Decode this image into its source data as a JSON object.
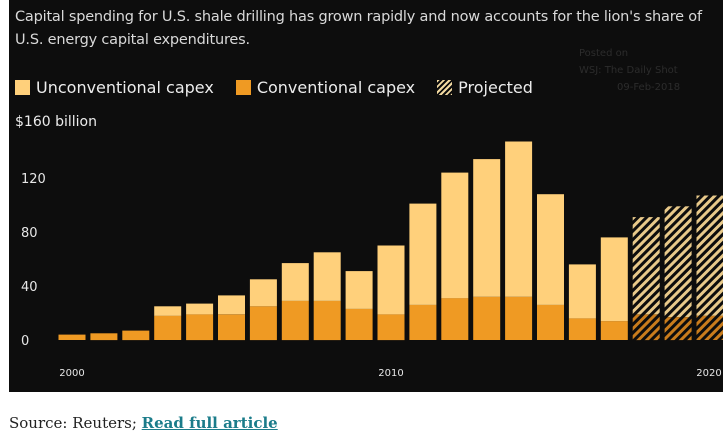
{
  "chart_data": {
    "type": "bar",
    "stacked": true,
    "title": "",
    "subtitle": "Capital spending for U.S. shale drilling has grown rapidly and now accounts for the lion's share of U.S. energy capital expenditures.",
    "unit_label": "$160 billion",
    "legend": {
      "placement": "top-left",
      "entries": [
        "Unconventional capex",
        "Conventional capex",
        "Projected"
      ]
    },
    "x": [
      2000,
      2001,
      2002,
      2003,
      2004,
      2005,
      2006,
      2007,
      2008,
      2009,
      2010,
      2011,
      2012,
      2013,
      2014,
      2015,
      2016,
      2017,
      2018,
      2019,
      2020
    ],
    "x_tick_labels": [
      "2000",
      "2010",
      "2020"
    ],
    "x_tick_values": [
      2000,
      2010,
      2020
    ],
    "y_ticks": [
      0,
      40,
      80,
      120
    ],
    "ylim": [
      -10,
      160
    ],
    "projected_from": 2018,
    "series": [
      {
        "name": "Conventional capex",
        "color": "#ef9a23",
        "values": [
          4,
          5,
          7,
          18,
          19,
          19,
          25,
          29,
          29,
          23,
          19,
          26,
          31,
          32,
          32,
          26,
          16,
          14,
          19,
          17,
          18
        ]
      },
      {
        "name": "Unconventional capex",
        "color": "#ffd07b",
        "values": [
          0,
          0,
          0,
          7,
          8,
          14,
          20,
          28,
          36,
          28,
          51,
          75,
          93,
          102,
          115,
          82,
          40,
          62,
          72,
          82,
          89
        ]
      }
    ]
  },
  "watermark": {
    "line1": "Posted on",
    "line2": "WSJ: The Daily Shot",
    "line3": "09-Feb-2018"
  },
  "source": {
    "prefix": "Source: Reuters; ",
    "link_label": "Read full article"
  }
}
